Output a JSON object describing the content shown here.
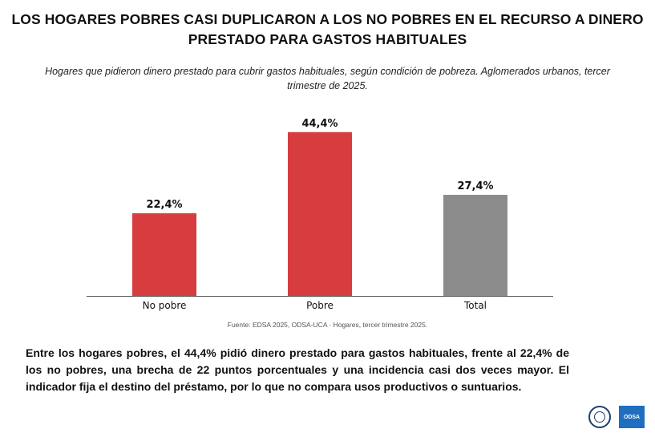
{
  "header": {
    "title_line1": "LOS HOGARES POBRES CASI DUPLICARON A LOS NO POBRES EN EL RECURSO A DINERO",
    "title_line2": "PRESTADO PARA GASTOS HABITUALES",
    "subtitle_line1": "Hogares que pidieron dinero prestado para cubrir gastos habituales, según condición de pobreza. Aglomerados urbanos, tercer",
    "subtitle_line2": "trimestre de 2025."
  },
  "chart_data": {
    "type": "bar",
    "categories": [
      "No pobre",
      "Pobre",
      "Total"
    ],
    "values": [
      22.4,
      44.4,
      27.4
    ],
    "value_labels": [
      "22,4%",
      "44,4%",
      "27,4%"
    ],
    "colors": [
      "#d73c3f",
      "#d73c3f",
      "#8c8c8c"
    ],
    "ylim": [
      0,
      50
    ],
    "grid": false,
    "legend": "none"
  },
  "source": "Fuente: EDSA 2025, ODSA-UCA · Hogares, tercer trimestre 2025.",
  "body_text": "Entre los hogares pobres, el 44,4% pidió dinero prestado para gastos habituales, frente al 22,4% de los no pobres, una brecha de 22 puntos porcentuales y una incidencia casi dos veces mayor. El indicador fija el destino del préstamo, por lo que no compara usos productivos o suntuarios.",
  "logos": {
    "seal_icon": "university-seal-icon",
    "odsa_label": "ODSA"
  }
}
